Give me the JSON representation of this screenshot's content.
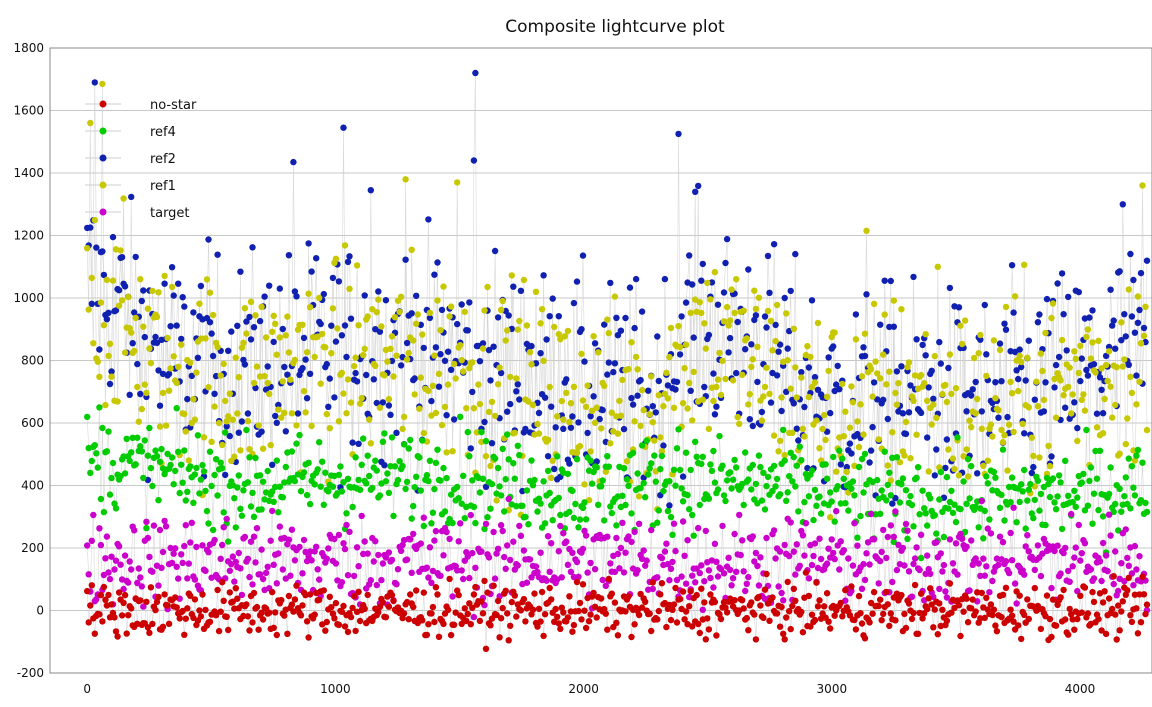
{
  "chart_data": {
    "type": "scatter",
    "title": "Composite lightcurve plot",
    "xlabel": "",
    "ylabel": "",
    "xlim": [
      -150,
      4290
    ],
    "ylim": [
      -200,
      1800
    ],
    "xticks": [
      0,
      1000,
      2000,
      3000,
      4000
    ],
    "yticks": [
      -200,
      0,
      200,
      400,
      600,
      800,
      1000,
      1200,
      1400,
      1600,
      1800
    ],
    "grid": "horizontal",
    "legend_position": "top-left",
    "x_range": [
      0,
      4270
    ],
    "series": [
      {
        "name": "no-star",
        "color": "#cc0000",
        "typical": 0,
        "spread": 45,
        "peaks": [],
        "envelope": []
      },
      {
        "name": "ref4",
        "color": "#00cc00",
        "typical": 420,
        "spread": 80,
        "envelope": [
          [
            0,
            480
          ],
          [
            200,
            460
          ],
          [
            600,
            400
          ],
          [
            1000,
            420
          ],
          [
            1500,
            430
          ],
          [
            2000,
            380
          ],
          [
            2400,
            420
          ],
          [
            2800,
            400
          ],
          [
            3200,
            350
          ],
          [
            3600,
            350
          ],
          [
            4000,
            370
          ],
          [
            4270,
            400
          ]
        ],
        "peaks": [
          [
            50,
            650
          ],
          [
            1500,
            620
          ],
          [
            2380,
            580
          ]
        ]
      },
      {
        "name": "ref2",
        "color": "#1020b0",
        "typical": 800,
        "spread": 190,
        "envelope": [
          [
            0,
            1050
          ],
          [
            100,
            1000
          ],
          [
            300,
            820
          ],
          [
            600,
            780
          ],
          [
            900,
            820
          ],
          [
            1200,
            840
          ],
          [
            1500,
            820
          ],
          [
            1800,
            740
          ],
          [
            2100,
            700
          ],
          [
            2300,
            700
          ],
          [
            2450,
            920
          ],
          [
            2700,
            850
          ],
          [
            3000,
            650
          ],
          [
            3300,
            700
          ],
          [
            3600,
            650
          ],
          [
            3800,
            700
          ],
          [
            4000,
            760
          ],
          [
            4270,
            850
          ]
        ],
        "peaks": [
          [
            30,
            1690
          ],
          [
            1565,
            1720
          ],
          [
            1030,
            1545
          ],
          [
            2380,
            1525
          ],
          [
            830,
            1435
          ],
          [
            1555,
            1440
          ],
          [
            2450,
            1340
          ],
          [
            4170,
            1300
          ],
          [
            1140,
            1345
          ]
        ]
      },
      {
        "name": "ref1",
        "color": "#c8c800",
        "typical": 780,
        "spread": 180,
        "envelope": [
          [
            0,
            1050
          ],
          [
            100,
            950
          ],
          [
            300,
            780
          ],
          [
            600,
            720
          ],
          [
            900,
            790
          ],
          [
            1200,
            800
          ],
          [
            1500,
            780
          ],
          [
            1800,
            700
          ],
          [
            2100,
            640
          ],
          [
            2300,
            650
          ],
          [
            2450,
            880
          ],
          [
            2700,
            780
          ],
          [
            3000,
            620
          ],
          [
            3300,
            700
          ],
          [
            3600,
            640
          ],
          [
            3800,
            690
          ],
          [
            4000,
            730
          ],
          [
            4270,
            820
          ]
        ],
        "peaks": [
          [
            10,
            1560
          ],
          [
            60,
            1685
          ],
          [
            1280,
            1380
          ],
          [
            1490,
            1370
          ],
          [
            3140,
            1215
          ],
          [
            3430,
            1100
          ],
          [
            4250,
            1360
          ]
        ]
      },
      {
        "name": "target",
        "color": "#cc00cc",
        "typical": 160,
        "spread": 80,
        "peaks": [],
        "envelope": []
      }
    ]
  }
}
